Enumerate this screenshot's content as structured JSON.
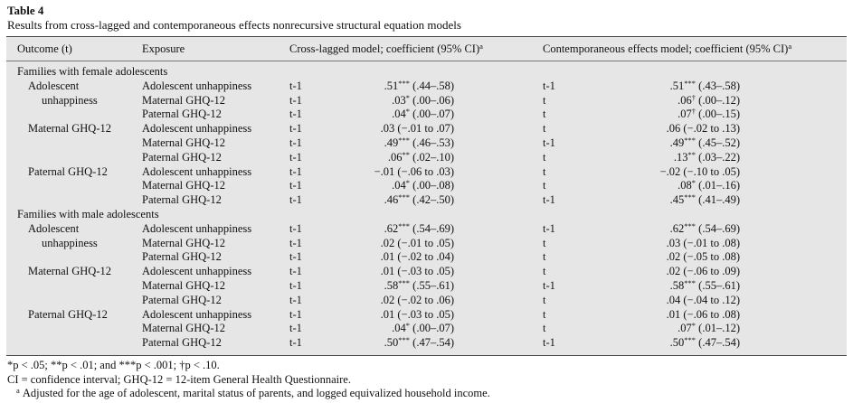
{
  "table_number": "Table 4",
  "caption": "Results from cross-lagged and contemporaneous effects nonrecursive structural equation models",
  "headers": {
    "outcome": "Outcome (t)",
    "exposure": "Exposure",
    "cross": "Cross-lagged model; coefficient (95% CI)",
    "cross_sup": "a",
    "contemp": "Contemporaneous effects model; coefficient (95% CI)",
    "contemp_sup": "a"
  },
  "rows": [
    {
      "sec": "Families with female adolescents"
    },
    {
      "outcome": "Adolescent",
      "exposure": "Adolescent unhappiness",
      "cl_time": "t-1",
      "cl_est": ".51",
      "cl_sig": "***",
      "cl_ci": "(.44–.58)",
      "ce_time": "t-1",
      "ce_est": ".51",
      "ce_sig": "***",
      "ce_ci": "(.43–.58)"
    },
    {
      "outcome": "unhappiness",
      "indent2": true,
      "exposure": "Maternal GHQ-12",
      "cl_time": "t-1",
      "cl_est": ".03",
      "cl_sig": "*",
      "cl_ci": "(.00–.06)",
      "ce_time": "t",
      "ce_est": ".06",
      "ce_sig": "†",
      "ce_ci": "(.00–.12)"
    },
    {
      "outcome": "",
      "exposure": "Paternal GHQ-12",
      "cl_time": "t-1",
      "cl_est": ".04",
      "cl_sig": "*",
      "cl_ci": "(.00–.07)",
      "ce_time": "t",
      "ce_est": ".07",
      "ce_sig": "†",
      "ce_ci": "(.00–.15)"
    },
    {
      "outcome": "Maternal GHQ-12",
      "exposure": "Adolescent unhappiness",
      "cl_time": "t-1",
      "cl_est": ".03",
      "cl_sig": "",
      "cl_ci": "(−.01 to .07)",
      "ce_time": "t",
      "ce_est": ".06",
      "ce_sig": "",
      "ce_ci": "(−.02 to .13)"
    },
    {
      "outcome": "",
      "exposure": "Maternal GHQ-12",
      "cl_time": "t-1",
      "cl_est": ".49",
      "cl_sig": "***",
      "cl_ci": "(.46–.53)",
      "ce_time": "t-1",
      "ce_est": ".49",
      "ce_sig": "***",
      "ce_ci": "(.45–.52)"
    },
    {
      "outcome": "",
      "exposure": "Paternal GHQ-12",
      "cl_time": "t-1",
      "cl_est": ".06",
      "cl_sig": "**",
      "cl_ci": "(.02–.10)",
      "ce_time": "t",
      "ce_est": ".13",
      "ce_sig": "**",
      "ce_ci": "(.03–.22)"
    },
    {
      "outcome": "Paternal GHQ-12",
      "exposure": "Adolescent unhappiness",
      "cl_time": "t-1",
      "cl_est": "−.01",
      "cl_sig": "",
      "cl_ci": "(−.06 to .03)",
      "ce_time": "t",
      "ce_est": "−.02",
      "ce_sig": "",
      "ce_ci": "(−.10 to .05)"
    },
    {
      "outcome": "",
      "exposure": "Maternal GHQ-12",
      "cl_time": "t-1",
      "cl_est": ".04",
      "cl_sig": "*",
      "cl_ci": "(.00–.08)",
      "ce_time": "t",
      "ce_est": ".08",
      "ce_sig": "*",
      "ce_ci": "(.01–.16)"
    },
    {
      "outcome": "",
      "exposure": "Paternal GHQ-12",
      "cl_time": "t-1",
      "cl_est": ".46",
      "cl_sig": "***",
      "cl_ci": "(.42–.50)",
      "ce_time": "t-1",
      "ce_est": ".45",
      "ce_sig": "***",
      "ce_ci": "(.41–.49)"
    },
    {
      "sec": "Families with male adolescents"
    },
    {
      "outcome": "Adolescent",
      "exposure": "Adolescent unhappiness",
      "cl_time": "t-1",
      "cl_est": ".62",
      "cl_sig": "***",
      "cl_ci": "(.54–.69)",
      "ce_time": "t-1",
      "ce_est": ".62",
      "ce_sig": "***",
      "ce_ci": "(.54–.69)"
    },
    {
      "outcome": "unhappiness",
      "indent2": true,
      "exposure": "Maternal GHQ-12",
      "cl_time": "t-1",
      "cl_est": ".02",
      "cl_sig": "",
      "cl_ci": "(−.01 to .05)",
      "ce_time": "t",
      "ce_est": ".03",
      "ce_sig": "",
      "ce_ci": "(−.01 to .08)"
    },
    {
      "outcome": "",
      "exposure": "Paternal GHQ-12",
      "cl_time": "t-1",
      "cl_est": ".01",
      "cl_sig": "",
      "cl_ci": "(−.02 to .04)",
      "ce_time": "t",
      "ce_est": ".02",
      "ce_sig": "",
      "ce_ci": "(−.05 to .08)"
    },
    {
      "outcome": "Maternal GHQ-12",
      "exposure": "Adolescent unhappiness",
      "cl_time": "t-1",
      "cl_est": ".01",
      "cl_sig": "",
      "cl_ci": "(−.03 to .05)",
      "ce_time": "t",
      "ce_est": ".02",
      "ce_sig": "",
      "ce_ci": "(−.06 to .09)"
    },
    {
      "outcome": "",
      "exposure": "Maternal GHQ-12",
      "cl_time": "t-1",
      "cl_est": ".58",
      "cl_sig": "***",
      "cl_ci": "(.55–.61)",
      "ce_time": "t-1",
      "ce_est": ".58",
      "ce_sig": "***",
      "ce_ci": "(.55–.61)"
    },
    {
      "outcome": "",
      "exposure": "Paternal GHQ-12",
      "cl_time": "t-1",
      "cl_est": ".02",
      "cl_sig": "",
      "cl_ci": "(−.02 to .06)",
      "ce_time": "t",
      "ce_est": ".04",
      "ce_sig": "",
      "ce_ci": "(−.04 to .12)"
    },
    {
      "outcome": "Paternal GHQ-12",
      "exposure": "Adolescent unhappiness",
      "cl_time": "t-1",
      "cl_est": ".01",
      "cl_sig": "",
      "cl_ci": "(−.03 to .05)",
      "ce_time": "t",
      "ce_est": ".01",
      "ce_sig": "",
      "ce_ci": "(−.06 to .08)"
    },
    {
      "outcome": "",
      "exposure": "Maternal GHQ-12",
      "cl_time": "t-1",
      "cl_est": ".04",
      "cl_sig": "*",
      "cl_ci": "(.00–.07)",
      "ce_time": "t",
      "ce_est": ".07",
      "ce_sig": "*",
      "ce_ci": "(.01–.12)"
    },
    {
      "outcome": "",
      "exposure": "Paternal GHQ-12",
      "cl_time": "t-1",
      "cl_est": ".50",
      "cl_sig": "***",
      "cl_ci": "(.47–.54)",
      "ce_time": "t-1",
      "ce_est": ".50",
      "ce_sig": "***",
      "ce_ci": "(.47–.54)"
    }
  ],
  "footnotes": {
    "sig_line": "*p < .05; **p < .01; and ***p < .001; †p < .10.",
    "ci_line": "CI = confidence interval; GHQ-12 = 12-item General Health Questionnaire.",
    "a_mark": "a",
    "a_text": "Adjusted for the age of adolescent, marital status of parents, and logged equivalized household income."
  }
}
